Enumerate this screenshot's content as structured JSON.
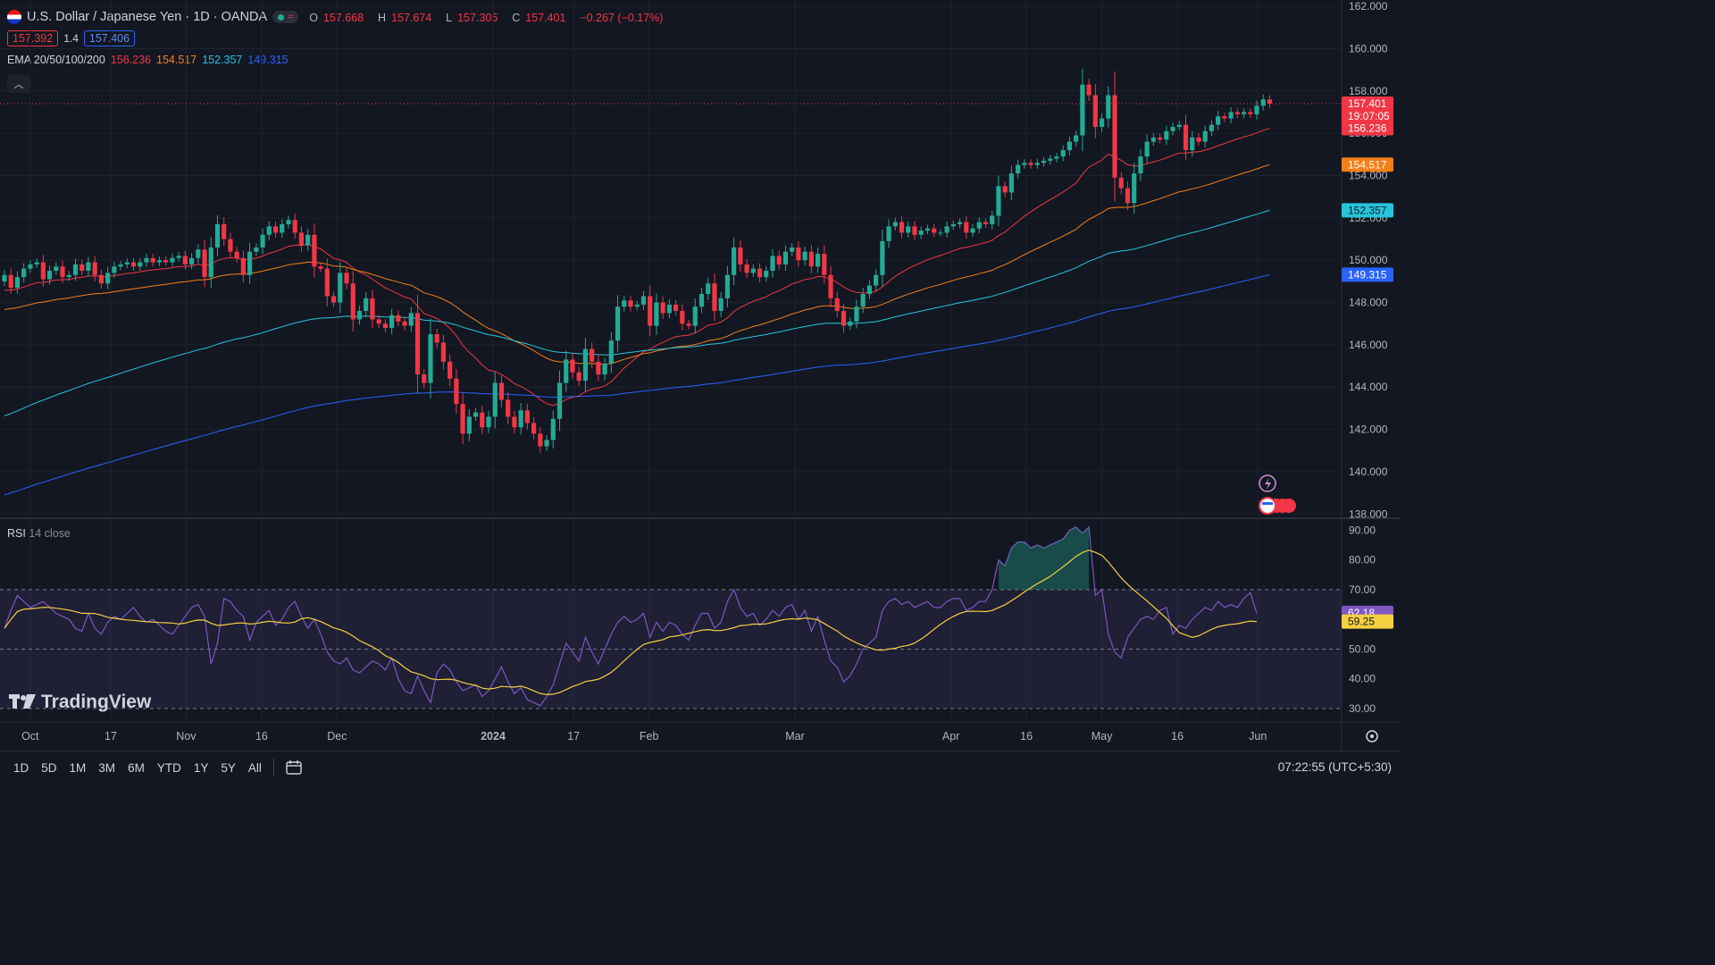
{
  "header": {
    "title": "U.S. Dollar / Japanese Yen · 1D · OANDA",
    "ohlc": [
      {
        "k": "O",
        "v": "157.668"
      },
      {
        "k": "H",
        "v": "157.674"
      },
      {
        "k": "L",
        "v": "157.305"
      },
      {
        "k": "C",
        "v": "157.401"
      }
    ],
    "change": "−0.267 (−0.17%)",
    "bid": "157.392",
    "spread": "1.4",
    "ask": "157.406"
  },
  "ema_legend": {
    "label": "EMA 20/50/100/200",
    "values": [
      "156.236",
      "154.517",
      "152.357",
      "149.315"
    ]
  },
  "rsi_legend": {
    "label": "RSI",
    "params": "14 close"
  },
  "logo": "TradingView",
  "colors": {
    "up": "#22ab94",
    "down": "#f23645",
    "ema20": "#f23645",
    "ema50": "#f57f17",
    "ema100": "#26c6da",
    "ema200": "#2962ff",
    "rsi": "#7e57c2",
    "rsi_ma": "#f5d142"
  },
  "bottom_bar": {
    "timeframes": [
      "1D",
      "5D",
      "1M",
      "3M",
      "6M",
      "YTD",
      "1Y",
      "5Y",
      "All"
    ],
    "calendar_icon": "calendar-icon",
    "clock": "07:22:55 (UTC+5:30)"
  },
  "chart_data": [
    {
      "type": "candlestick",
      "symbol": "USD/JPY",
      "interval": "1D",
      "grid": true,
      "price_axis": {
        "ticks": [
          162,
          160,
          158,
          156,
          154,
          152,
          150,
          148,
          146,
          144,
          142,
          140,
          138
        ],
        "tick_labels": [
          "162.000",
          "160.000",
          "158.000",
          "156.000",
          "154.000",
          "152.000",
          "150.000",
          "148.000",
          "146.000",
          "144.000",
          "142.000",
          "140.000",
          "138.000"
        ],
        "range": [
          137.8,
          162.3
        ]
      },
      "time_axis": {
        "labels": [
          "Oct",
          "17",
          "Nov",
          "16",
          "Dec",
          "2024",
          "17",
          "Feb",
          "Mar",
          "Apr",
          "16",
          "May",
          "16",
          "Jun"
        ],
        "range": [
          "2023-09-25",
          "2024-06-07"
        ]
      },
      "price_labels": [
        {
          "value": 157.401,
          "text": "157.401",
          "sub": "19:07:05",
          "color": "#f23645"
        },
        {
          "value": 156.236,
          "text": "156.236",
          "color": "#f23645"
        },
        {
          "value": 154.517,
          "text": "154.517",
          "color": "#f57f17"
        },
        {
          "value": 152.357,
          "text": "152.357",
          "color": "#26c6da"
        },
        {
          "value": 149.315,
          "text": "149.315",
          "color": "#2962ff"
        }
      ],
      "candles_close": [
        149.3,
        148.7,
        149.2,
        149.6,
        149.8,
        149.9,
        149.1,
        149.5,
        149.7,
        149.2,
        149.3,
        149.8,
        149.5,
        149.9,
        149.3,
        148.9,
        149.4,
        149.7,
        149.8,
        149.9,
        149.7,
        149.9,
        150.1,
        149.9,
        150.0,
        149.9,
        150.1,
        150.2,
        149.8,
        150.1,
        150.5,
        149.2,
        150.6,
        151.7,
        151.0,
        150.4,
        150.1,
        149.3,
        150.4,
        150.6,
        151.2,
        151.6,
        151.3,
        151.7,
        151.9,
        151.3,
        150.7,
        151.2,
        149.7,
        149.6,
        148.3,
        148.0,
        149.4,
        148.9,
        147.2,
        147.6,
        148.2,
        147.2,
        147.0,
        146.8,
        147.4,
        147.1,
        146.9,
        147.5,
        144.6,
        144.2,
        146.5,
        146.1,
        145.2,
        144.4,
        143.2,
        141.8,
        142.6,
        142.8,
        142.1,
        142.6,
        144.2,
        143.4,
        142.6,
        142.1,
        142.9,
        142.3,
        141.8,
        141.2,
        141.5,
        142.5,
        144.2,
        145.3,
        144.7,
        144.3,
        145.8,
        145.2,
        144.6,
        145.1,
        146.2,
        147.8,
        148.1,
        147.8,
        147.9,
        148.3,
        146.9,
        148.0,
        147.5,
        147.9,
        147.6,
        147.0,
        146.9,
        147.8,
        148.4,
        148.9,
        147.6,
        148.2,
        149.3,
        150.6,
        149.8,
        149.4,
        149.6,
        149.2,
        149.5,
        150.2,
        149.8,
        150.4,
        150.6,
        150.0,
        150.4,
        149.7,
        150.3,
        149.3,
        148.2,
        147.6,
        146.9,
        147.1,
        147.8,
        148.4,
        148.8,
        149.3,
        150.9,
        151.6,
        151.8,
        151.3,
        151.6,
        151.2,
        151.4,
        151.5,
        151.3,
        151.3,
        151.6,
        151.7,
        151.8,
        151.3,
        151.5,
        151.8,
        151.7,
        152.1,
        153.5,
        153.2,
        154.1,
        154.5,
        154.6,
        154.5,
        154.6,
        154.7,
        154.8,
        154.9,
        155.2,
        155.6,
        155.9,
        158.3,
        157.8,
        156.3,
        156.7,
        157.8,
        153.9,
        153.4,
        152.7,
        154.1,
        154.9,
        155.6,
        155.8,
        155.7,
        156.1,
        156.3,
        156.4,
        155.2,
        155.8,
        155.6,
        156.1,
        156.4,
        156.8,
        156.7,
        157.0,
        156.9,
        157.0,
        156.9,
        157.3,
        157.6,
        157.4
      ],
      "ema_series": [
        {
          "name": "EMA 20",
          "period": 20
        },
        {
          "name": "EMA 50",
          "period": 50
        },
        {
          "name": "EMA 100",
          "period": 100
        },
        {
          "name": "EMA 200",
          "period": 200
        }
      ]
    },
    {
      "type": "line",
      "indicator": "RSI",
      "axis_tick_labels": [
        "90.00",
        "80.00",
        "70.00",
        "60.00",
        "50.00",
        "40.00",
        "30.00"
      ],
      "axis_ticks": [
        90,
        80,
        70,
        60,
        50,
        40,
        30
      ],
      "range": [
        25.5,
        94
      ],
      "bands": {
        "upper": 70,
        "lower": 30,
        "middle": 50
      },
      "series": [
        {
          "values": [
            57,
            63,
            68,
            66,
            64,
            65,
            66,
            64,
            62,
            61,
            60,
            57,
            56,
            62,
            57,
            55,
            59,
            61,
            60,
            62,
            64,
            61,
            59,
            60,
            58,
            56,
            55,
            58,
            61,
            64,
            65,
            61,
            45,
            52,
            67,
            66,
            63,
            61,
            53,
            59,
            61,
            63,
            58,
            60,
            64,
            66,
            61,
            57,
            60,
            55,
            49,
            46,
            45,
            47,
            43,
            42,
            44,
            46,
            45,
            43,
            47,
            40,
            36,
            35,
            41,
            36,
            32,
            42,
            45,
            43,
            39,
            36,
            37,
            38,
            34,
            36,
            40,
            44,
            39,
            35,
            37,
            33,
            32,
            31,
            34,
            38,
            45,
            52,
            49,
            46,
            54,
            49,
            45,
            50,
            55,
            59,
            61,
            59,
            60,
            62,
            54,
            59,
            56,
            59,
            58,
            55,
            53,
            58,
            62,
            62,
            57,
            59,
            66,
            70,
            64,
            61,
            62,
            58,
            60,
            63,
            61,
            64,
            65,
            60,
            63,
            56,
            61,
            53,
            46,
            44,
            39,
            41,
            45,
            50,
            52,
            54,
            63,
            66,
            67,
            65,
            66,
            64,
            65,
            66,
            64,
            64,
            66,
            67,
            67,
            63,
            64,
            66,
            66,
            70,
            80,
            78,
            84,
            86,
            86,
            84,
            85,
            84,
            85,
            86,
            87,
            90,
            91,
            89,
            91,
            68,
            70,
            55,
            49,
            47,
            54,
            57,
            60,
            61,
            60,
            63,
            64,
            55,
            58,
            57,
            60,
            62,
            64,
            63,
            66,
            64,
            65,
            64,
            67,
            69,
            62
          ]
        },
        {
          "values": []
        }
      ],
      "last_labels": [
        {
          "value": 62.18,
          "text": "62.18",
          "color": "#7e57c2"
        },
        {
          "value": 59.25,
          "text": "59.25",
          "color": "#f5d142"
        }
      ]
    }
  ]
}
